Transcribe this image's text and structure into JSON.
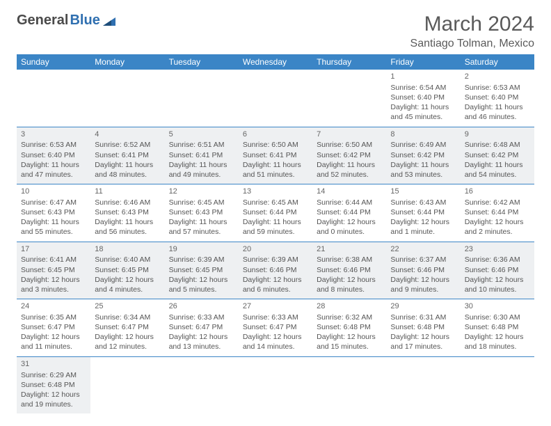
{
  "logo": {
    "text_a": "General",
    "text_b": "Blue"
  },
  "title": "March 2024",
  "location": "Santiago Tolman, Mexico",
  "colors": {
    "header_bg": "#3b85c6",
    "header_text": "#ffffff",
    "row_border": "#3b85c6",
    "shaded_bg": "#eef0f2",
    "body_text": "#555555",
    "title_text": "#5a5a5a"
  },
  "typography": {
    "title_fontsize": 30,
    "location_fontsize": 16,
    "header_fontsize": 12,
    "cell_fontsize": 10.5
  },
  "weekdays": [
    "Sunday",
    "Monday",
    "Tuesday",
    "Wednesday",
    "Thursday",
    "Friday",
    "Saturday"
  ],
  "weeks": [
    [
      {
        "empty": true
      },
      {
        "empty": true
      },
      {
        "empty": true
      },
      {
        "empty": true
      },
      {
        "empty": true
      },
      {
        "day": "1",
        "sunrise": "Sunrise: 6:54 AM",
        "sunset": "Sunset: 6:40 PM",
        "daylight": "Daylight: 11 hours and 45 minutes."
      },
      {
        "day": "2",
        "sunrise": "Sunrise: 6:53 AM",
        "sunset": "Sunset: 6:40 PM",
        "daylight": "Daylight: 11 hours and 46 minutes."
      }
    ],
    [
      {
        "day": "3",
        "shaded": true,
        "sunrise": "Sunrise: 6:53 AM",
        "sunset": "Sunset: 6:40 PM",
        "daylight": "Daylight: 11 hours and 47 minutes."
      },
      {
        "day": "4",
        "shaded": true,
        "sunrise": "Sunrise: 6:52 AM",
        "sunset": "Sunset: 6:41 PM",
        "daylight": "Daylight: 11 hours and 48 minutes."
      },
      {
        "day": "5",
        "shaded": true,
        "sunrise": "Sunrise: 6:51 AM",
        "sunset": "Sunset: 6:41 PM",
        "daylight": "Daylight: 11 hours and 49 minutes."
      },
      {
        "day": "6",
        "shaded": true,
        "sunrise": "Sunrise: 6:50 AM",
        "sunset": "Sunset: 6:41 PM",
        "daylight": "Daylight: 11 hours and 51 minutes."
      },
      {
        "day": "7",
        "shaded": true,
        "sunrise": "Sunrise: 6:50 AM",
        "sunset": "Sunset: 6:42 PM",
        "daylight": "Daylight: 11 hours and 52 minutes."
      },
      {
        "day": "8",
        "shaded": true,
        "sunrise": "Sunrise: 6:49 AM",
        "sunset": "Sunset: 6:42 PM",
        "daylight": "Daylight: 11 hours and 53 minutes."
      },
      {
        "day": "9",
        "shaded": true,
        "sunrise": "Sunrise: 6:48 AM",
        "sunset": "Sunset: 6:42 PM",
        "daylight": "Daylight: 11 hours and 54 minutes."
      }
    ],
    [
      {
        "day": "10",
        "sunrise": "Sunrise: 6:47 AM",
        "sunset": "Sunset: 6:43 PM",
        "daylight": "Daylight: 11 hours and 55 minutes."
      },
      {
        "day": "11",
        "sunrise": "Sunrise: 6:46 AM",
        "sunset": "Sunset: 6:43 PM",
        "daylight": "Daylight: 11 hours and 56 minutes."
      },
      {
        "day": "12",
        "sunrise": "Sunrise: 6:45 AM",
        "sunset": "Sunset: 6:43 PM",
        "daylight": "Daylight: 11 hours and 57 minutes."
      },
      {
        "day": "13",
        "sunrise": "Sunrise: 6:45 AM",
        "sunset": "Sunset: 6:44 PM",
        "daylight": "Daylight: 11 hours and 59 minutes."
      },
      {
        "day": "14",
        "sunrise": "Sunrise: 6:44 AM",
        "sunset": "Sunset: 6:44 PM",
        "daylight": "Daylight: 12 hours and 0 minutes."
      },
      {
        "day": "15",
        "sunrise": "Sunrise: 6:43 AM",
        "sunset": "Sunset: 6:44 PM",
        "daylight": "Daylight: 12 hours and 1 minute."
      },
      {
        "day": "16",
        "sunrise": "Sunrise: 6:42 AM",
        "sunset": "Sunset: 6:44 PM",
        "daylight": "Daylight: 12 hours and 2 minutes."
      }
    ],
    [
      {
        "day": "17",
        "shaded": true,
        "sunrise": "Sunrise: 6:41 AM",
        "sunset": "Sunset: 6:45 PM",
        "daylight": "Daylight: 12 hours and 3 minutes."
      },
      {
        "day": "18",
        "shaded": true,
        "sunrise": "Sunrise: 6:40 AM",
        "sunset": "Sunset: 6:45 PM",
        "daylight": "Daylight: 12 hours and 4 minutes."
      },
      {
        "day": "19",
        "shaded": true,
        "sunrise": "Sunrise: 6:39 AM",
        "sunset": "Sunset: 6:45 PM",
        "daylight": "Daylight: 12 hours and 5 minutes."
      },
      {
        "day": "20",
        "shaded": true,
        "sunrise": "Sunrise: 6:39 AM",
        "sunset": "Sunset: 6:46 PM",
        "daylight": "Daylight: 12 hours and 6 minutes."
      },
      {
        "day": "21",
        "shaded": true,
        "sunrise": "Sunrise: 6:38 AM",
        "sunset": "Sunset: 6:46 PM",
        "daylight": "Daylight: 12 hours and 8 minutes."
      },
      {
        "day": "22",
        "shaded": true,
        "sunrise": "Sunrise: 6:37 AM",
        "sunset": "Sunset: 6:46 PM",
        "daylight": "Daylight: 12 hours and 9 minutes."
      },
      {
        "day": "23",
        "shaded": true,
        "sunrise": "Sunrise: 6:36 AM",
        "sunset": "Sunset: 6:46 PM",
        "daylight": "Daylight: 12 hours and 10 minutes."
      }
    ],
    [
      {
        "day": "24",
        "sunrise": "Sunrise: 6:35 AM",
        "sunset": "Sunset: 6:47 PM",
        "daylight": "Daylight: 12 hours and 11 minutes."
      },
      {
        "day": "25",
        "sunrise": "Sunrise: 6:34 AM",
        "sunset": "Sunset: 6:47 PM",
        "daylight": "Daylight: 12 hours and 12 minutes."
      },
      {
        "day": "26",
        "sunrise": "Sunrise: 6:33 AM",
        "sunset": "Sunset: 6:47 PM",
        "daylight": "Daylight: 12 hours and 13 minutes."
      },
      {
        "day": "27",
        "sunrise": "Sunrise: 6:33 AM",
        "sunset": "Sunset: 6:47 PM",
        "daylight": "Daylight: 12 hours and 14 minutes."
      },
      {
        "day": "28",
        "sunrise": "Sunrise: 6:32 AM",
        "sunset": "Sunset: 6:48 PM",
        "daylight": "Daylight: 12 hours and 15 minutes."
      },
      {
        "day": "29",
        "sunrise": "Sunrise: 6:31 AM",
        "sunset": "Sunset: 6:48 PM",
        "daylight": "Daylight: 12 hours and 17 minutes."
      },
      {
        "day": "30",
        "sunrise": "Sunrise: 6:30 AM",
        "sunset": "Sunset: 6:48 PM",
        "daylight": "Daylight: 12 hours and 18 minutes."
      }
    ],
    [
      {
        "day": "31",
        "shaded": true,
        "sunrise": "Sunrise: 6:29 AM",
        "sunset": "Sunset: 6:48 PM",
        "daylight": "Daylight: 12 hours and 19 minutes."
      },
      {
        "empty": true
      },
      {
        "empty": true
      },
      {
        "empty": true
      },
      {
        "empty": true
      },
      {
        "empty": true
      },
      {
        "empty": true
      }
    ]
  ]
}
